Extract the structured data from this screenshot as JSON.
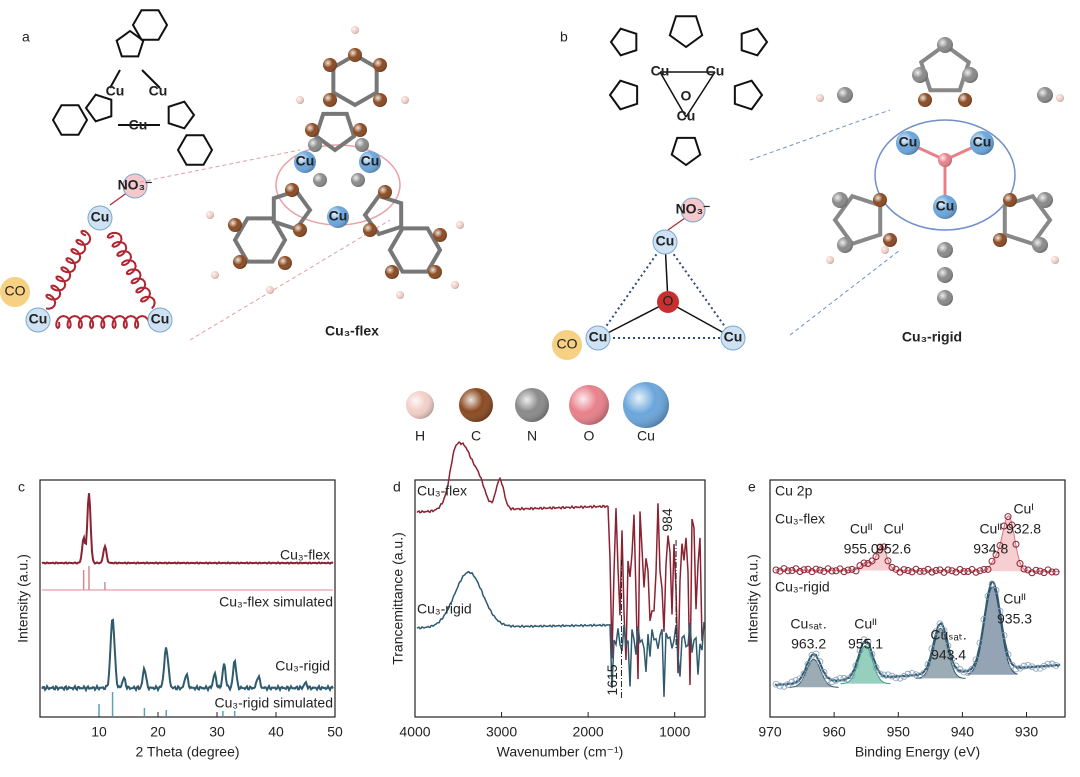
{
  "panel_a": {
    "label": "a",
    "title": "Cu₃-flex",
    "structure_labels": [
      "Cu",
      "Cu",
      "Cu"
    ],
    "schematic": {
      "nodes": [
        "Cu",
        "Cu",
        "Cu"
      ],
      "ligand": "NO₃⁻",
      "guest": "CO"
    },
    "model_labels": [
      "Cu",
      "Cu",
      "Cu"
    ]
  },
  "panel_b": {
    "label": "b",
    "title": "Cu₃-rigid",
    "structure_labels": [
      "Cu",
      "Cu",
      "Cu",
      "O"
    ],
    "schematic": {
      "nodes": [
        "Cu",
        "Cu",
        "Cu"
      ],
      "center": "O",
      "ligand": "NO₃⁻",
      "guest": "CO"
    },
    "model_labels": [
      "Cu",
      "Cu",
      "Cu"
    ]
  },
  "atom_legend": [
    {
      "label": "H",
      "color": "#f2cfc8"
    },
    {
      "label": "C",
      "color": "#8a4a22"
    },
    {
      "label": "N",
      "color": "#8a8a8a"
    },
    {
      "label": "O",
      "color": "#e8808a"
    },
    {
      "label": "Cu",
      "color": "#6aa6dc"
    }
  ],
  "panel_c": {
    "label": "c",
    "xlabel": "2 Theta (degree)",
    "ylabel": "Intensity (a.u.)",
    "xlim": [
      0,
      50
    ],
    "xticks": [
      10,
      20,
      30,
      40,
      50
    ],
    "series_labels": [
      "Cu₃-flex",
      "Cu₃-flex simulated",
      "Cu₃-rigid",
      "Cu₃-rigid simulated"
    ]
  },
  "panel_d": {
    "label": "d",
    "xlabel": "Wavenumber (cm⁻¹)",
    "ylabel": "Trancemittance (a.u.)",
    "xlim": [
      4000,
      650
    ],
    "xticks": [
      4000,
      3000,
      2000,
      1000
    ],
    "series_labels": [
      "Cu₃-flex",
      "Cu₃-rigid"
    ],
    "markers": [
      984,
      1615
    ]
  },
  "panel_e": {
    "label": "e",
    "title": "Cu 2p",
    "xlabel": "Binding Energy (eV)",
    "ylabel": "Intensity (a.u.)",
    "xlim": [
      970,
      924
    ],
    "xticks": [
      970,
      960,
      950,
      940,
      930
    ],
    "series_labels": [
      "Cu₃-flex",
      "Cu₃-rigid"
    ],
    "flex_peaks": [
      {
        "name": "Cuᴵᴵ",
        "value": 955,
        "label": "955.0"
      },
      {
        "name": "Cuᴵ",
        "value": 952.6,
        "label": "952.6"
      },
      {
        "name": "Cuᴵᴵ",
        "value": 934.8,
        "label": "934.8"
      },
      {
        "name": "Cuᴵ",
        "value": 932.8,
        "label": "932.8"
      }
    ],
    "rigid_peaks": [
      {
        "name": "Cuₛₐₜ.",
        "value": 963.2,
        "label": "963.2"
      },
      {
        "name": "Cuᴵᴵ",
        "value": 955.1,
        "label": "955.1"
      },
      {
        "name": "Cuₛₐₜ.",
        "value": 943.4,
        "label": "943.4"
      },
      {
        "name": "Cuᴵᴵ",
        "value": 935.3,
        "label": "935.3"
      }
    ]
  }
}
